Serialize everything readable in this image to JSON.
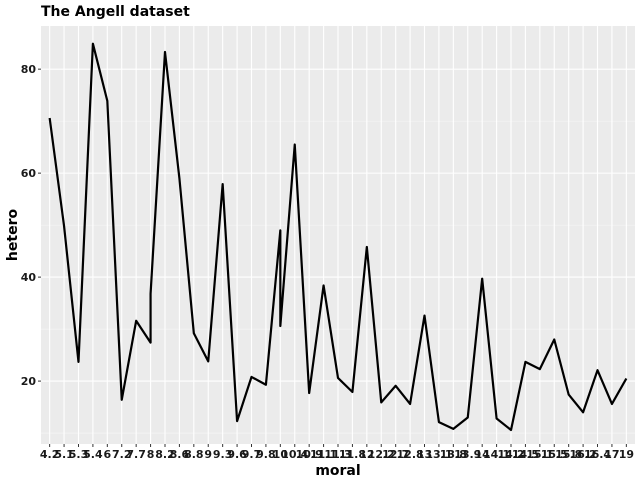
{
  "chart_data": {
    "type": "line",
    "title": "The Angell dataset",
    "xlabel": "moral",
    "ylabel": "hetero",
    "x_axis_kind": "categorical",
    "categories": [
      "4.2",
      "5.1",
      "5.3",
      "5.4",
      "6",
      "7.2",
      "7.7",
      "8",
      "8.2",
      "8.6",
      "8.8",
      "9",
      "9.3",
      "9.6",
      "9.7",
      "9.8",
      "10",
      "10.4",
      "10.9",
      "11.1",
      "11.3",
      "11.8",
      "12",
      "12.2",
      "12.7",
      "12.8",
      "13",
      "13.1",
      "13.8",
      "13.9",
      "14",
      "14.1",
      "14.2",
      "14.5",
      "15.1",
      "15.5",
      "15.8",
      "16.2",
      "16.4",
      "17",
      "19"
    ],
    "series": [
      {
        "points": [
          [
            "4.2",
            70.6
          ],
          [
            "5.1",
            49.8
          ],
          [
            "5.3",
            23.7
          ],
          [
            "5.4",
            84.9
          ],
          [
            "6",
            73.9
          ],
          [
            "7.2",
            16.4
          ],
          [
            "7.7",
            31.6
          ],
          [
            "8",
            27.4
          ],
          [
            "8",
            36.8
          ],
          [
            "8.2",
            83.3
          ],
          [
            "8.6",
            59.0
          ],
          [
            "8.8",
            29.2
          ],
          [
            "9",
            23.8
          ],
          [
            "9.3",
            57.9
          ],
          [
            "9.6",
            12.3
          ],
          [
            "9.7",
            20.8
          ],
          [
            "9.8",
            19.3
          ],
          [
            "10",
            49.0
          ],
          [
            "10",
            30.6
          ],
          [
            "10.4",
            65.5
          ],
          [
            "10.9",
            17.7
          ],
          [
            "11.1",
            38.4
          ],
          [
            "11.3",
            20.6
          ],
          [
            "11.8",
            17.9
          ],
          [
            "12",
            45.8
          ],
          [
            "12.2",
            15.9
          ],
          [
            "12.7",
            19.1
          ],
          [
            "12.8",
            15.6
          ],
          [
            "13",
            32.6
          ],
          [
            "13.1",
            12.1
          ],
          [
            "13.8",
            10.8
          ],
          [
            "13.9",
            13.0
          ],
          [
            "14",
            39.7
          ],
          [
            "14.1",
            12.8
          ],
          [
            "14.2",
            10.6
          ],
          [
            "14.5",
            23.7
          ],
          [
            "15.1",
            22.3
          ],
          [
            "15.5",
            28.0
          ],
          [
            "15.8",
            17.4
          ],
          [
            "16.2",
            14.0
          ],
          [
            "16.4",
            22.1
          ],
          [
            "17",
            15.6
          ],
          [
            "19",
            20.5
          ]
        ]
      }
    ],
    "y_ticks": [
      20,
      40,
      60,
      80
    ],
    "ylim": [
      7.9,
      88.3
    ],
    "grid": true,
    "colors": {
      "panel": "#ebebeb",
      "grid_major": "#ffffff",
      "line": "#000000"
    }
  }
}
